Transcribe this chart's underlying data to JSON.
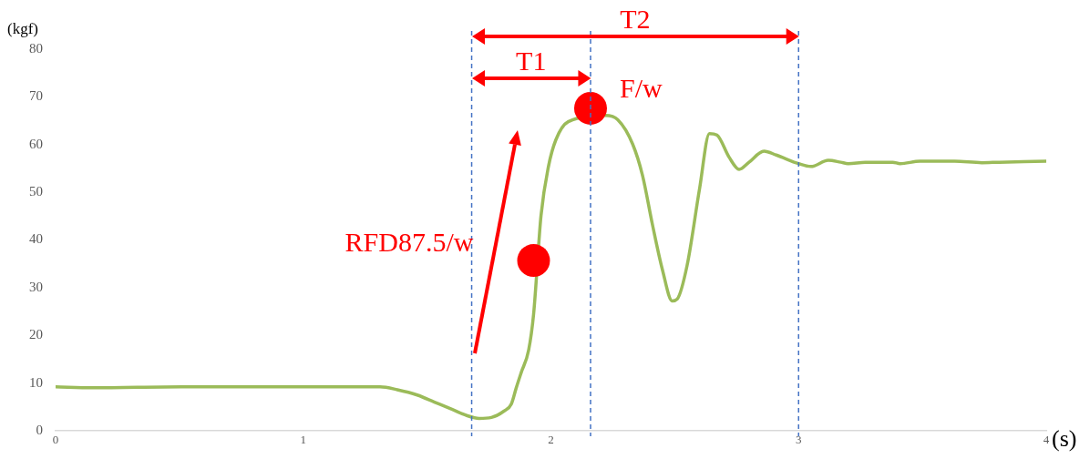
{
  "chart_data": {
    "type": "line",
    "xlabel": "(s)",
    "ylabel": "(kgf)",
    "xlim": [
      0,
      4
    ],
    "xticks": [
      0,
      1,
      2,
      3,
      4
    ],
    "ylim": [
      0,
      80
    ],
    "yticks": [
      0,
      10,
      20,
      30,
      40,
      50,
      60,
      70,
      80
    ],
    "grid": false,
    "legend": false,
    "marker": "none",
    "line_style": "solid",
    "series": [
      {
        "color": "#9bbb59",
        "x": [
          0,
          0.15,
          0.51,
          1.06,
          1.31,
          1.38,
          1.46,
          1.53,
          1.6,
          1.66,
          1.71,
          1.76,
          1.81,
          1.84,
          1.86,
          1.88,
          1.91,
          1.93,
          1.95,
          1.96,
          1.99,
          2.02,
          2.07,
          2.14,
          2.22,
          2.27,
          2.33,
          2.37,
          2.41,
          2.45,
          2.49,
          2.51,
          2.55,
          2.6,
          2.64,
          2.67,
          2.72,
          2.76,
          2.8,
          2.86,
          2.91,
          3,
          3.05,
          3.12,
          3.17,
          3.2,
          3.27,
          3.38,
          3.41,
          3.49,
          3.63,
          3.74,
          3.81,
          4
        ],
        "values": [
          9.2,
          9,
          9.2,
          9.2,
          9.2,
          8.6,
          7.5,
          6,
          4.5,
          3.2,
          2.6,
          2.8,
          4.1,
          5.6,
          9,
          12.2,
          16.9,
          24.4,
          null,
          45.1,
          55.4,
          61,
          64.8,
          null,
          66.1,
          65.2,
          60.1,
          53.5,
          43.2,
          33.8,
          27.2,
          27.6,
          34.7,
          50.7,
          62.3,
          62,
          57.3,
          54.8,
          56.3,
          58.6,
          57.8,
          56,
          55.4,
          56.7,
          56.3,
          56,
          56.3,
          56.3,
          56,
          56.5,
          56.5,
          56.2,
          56.3,
          56.5
        ]
      },
      {
        "type": "scatter",
        "marker": "circle",
        "color": "#ff0000",
        "x": [
          1.93,
          2.16
        ],
        "values": [
          35.7,
          67.6
        ]
      }
    ],
    "ref_lines": [
      {
        "axis": "x",
        "value": 1.68,
        "color": "#4472c4",
        "line_style": "dashed"
      },
      {
        "axis": "x",
        "value": 2.16,
        "color": "#4472c4",
        "line_style": "dashed"
      },
      {
        "axis": "x",
        "value": 3,
        "color": "#4472c4",
        "line_style": "dashed"
      }
    ],
    "annotations": [
      "T1",
      "T2",
      {
        "text": "F/w",
        "x": 2.16,
        "y": 67.6
      },
      {
        "text": "RFD87.5/w",
        "x": 1.93,
        "y": 35.7
      }
    ]
  }
}
